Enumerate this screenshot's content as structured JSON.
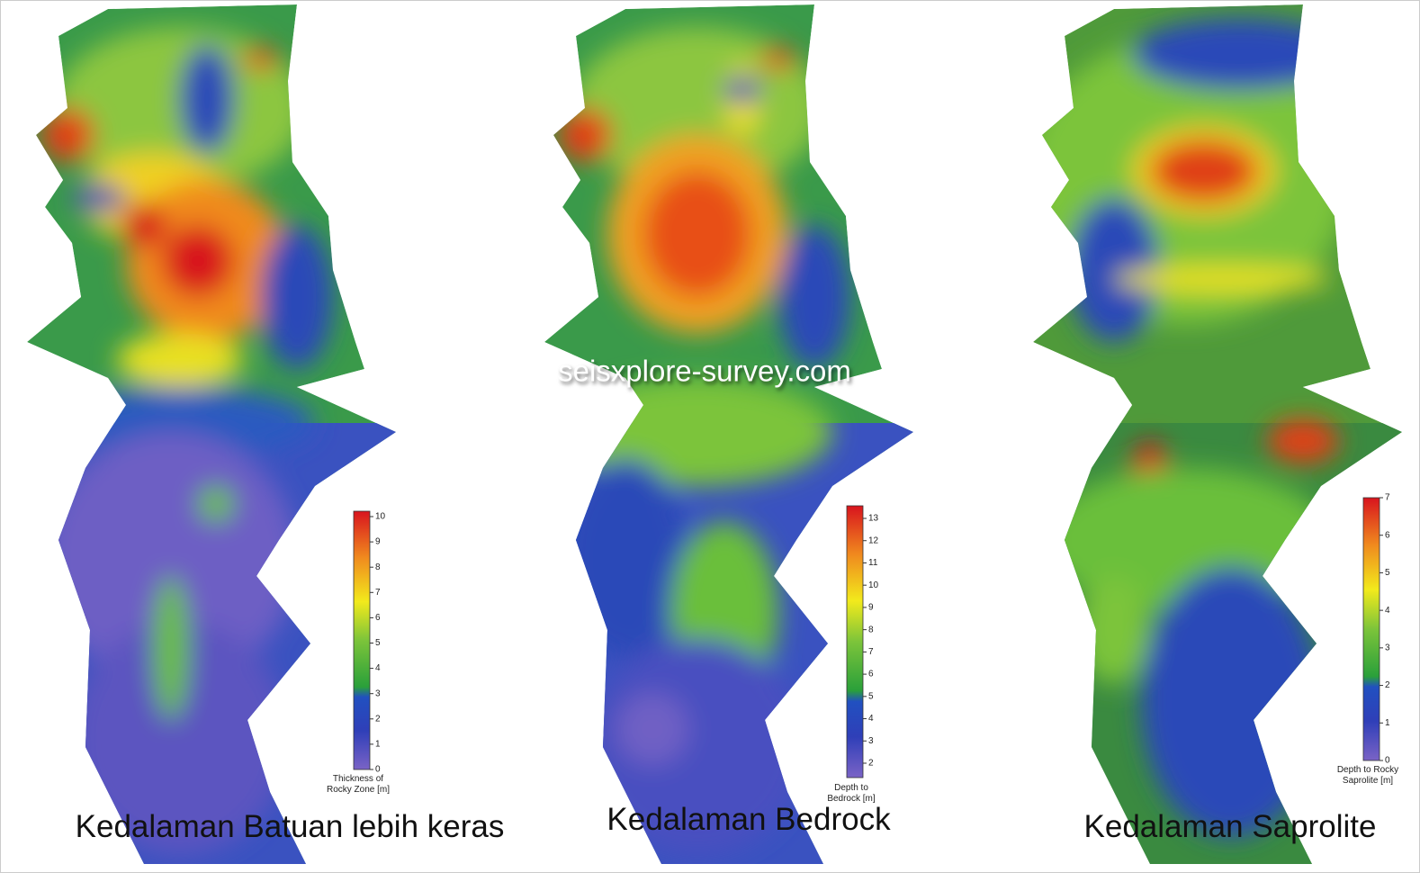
{
  "watermark": "seisxplore-survey.com",
  "panels": [
    {
      "title": "Kedalaman Batuan lebih keras",
      "colorbar": {
        "label": [
          "Thickness of",
          "Rocky Zone [m]"
        ],
        "ticks": [
          0,
          1,
          2,
          3,
          4,
          5,
          6,
          7,
          8,
          9,
          10
        ]
      }
    },
    {
      "title": "Kedalaman Bedrock",
      "colorbar": {
        "label": [
          "Depth to",
          "Bedrock [m]"
        ],
        "ticks": [
          2,
          3,
          4,
          5,
          6,
          7,
          8,
          9,
          10,
          11,
          12,
          13
        ]
      }
    },
    {
      "title": "Kedalaman Saprolite",
      "colorbar": {
        "label": [
          "Depth to Rocky",
          "Saprolite [m]"
        ],
        "ticks": [
          0,
          1,
          2,
          3,
          4,
          5,
          6,
          7
        ]
      }
    }
  ]
}
